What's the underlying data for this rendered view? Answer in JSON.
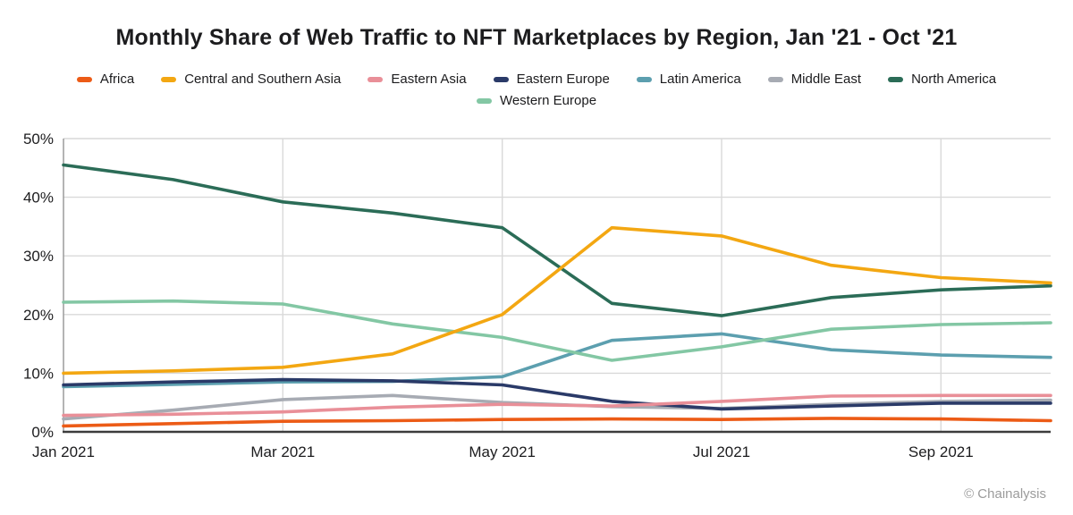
{
  "title": "Monthly Share of Web Traffic to NFT Marketplaces by Region, Jan '21 - Oct '21",
  "footer": {
    "credit": "© Chainalysis"
  },
  "chart_data": {
    "type": "line",
    "x": [
      "Jan 2021",
      "Feb 2021",
      "Mar 2021",
      "Apr 2021",
      "May 2021",
      "Jun 2021",
      "Jul 2021",
      "Aug 2021",
      "Sep 2021",
      "Oct 2021"
    ],
    "xticks": [
      {
        "label": "Jan 2021",
        "index": 0
      },
      {
        "label": "Mar 2021",
        "index": 2
      },
      {
        "label": "May 2021",
        "index": 4
      },
      {
        "label": "Jul 2021",
        "index": 6
      },
      {
        "label": "Sep 2021",
        "index": 8
      }
    ],
    "ylim": [
      0,
      50
    ],
    "yticks": [
      0,
      10,
      20,
      30,
      40,
      50
    ],
    "ytick_suffix": "%",
    "grid": {
      "horizontal": true,
      "vertical": true,
      "color": "#d9d9d9"
    },
    "axis_colors": {
      "x_axis": "#3c3c3c",
      "y_axis": "#9b9b9b"
    },
    "legend_position": "top",
    "series": [
      {
        "name": "Africa",
        "color": "#ec5b16",
        "values": [
          1.0,
          1.4,
          1.8,
          1.9,
          2.1,
          2.2,
          2.1,
          2.3,
          2.2,
          1.9
        ]
      },
      {
        "name": "Central and Southern Asia",
        "color": "#f3a712",
        "values": [
          10.0,
          10.4,
          11.0,
          13.3,
          20.0,
          34.8,
          33.4,
          28.4,
          26.3,
          25.4
        ]
      },
      {
        "name": "Eastern Asia",
        "color": "#e98f98",
        "values": [
          2.8,
          3.0,
          3.4,
          4.2,
          4.7,
          4.4,
          5.2,
          6.1,
          6.2,
          6.2
        ]
      },
      {
        "name": "Eastern Europe",
        "color": "#2a3a68",
        "values": [
          8.0,
          8.5,
          8.9,
          8.7,
          8.0,
          5.2,
          3.9,
          4.4,
          4.9,
          4.9
        ]
      },
      {
        "name": "Latin America",
        "color": "#5c9faf",
        "values": [
          7.7,
          8.1,
          8.5,
          8.6,
          9.4,
          15.6,
          16.7,
          14.0,
          13.1,
          12.7
        ]
      },
      {
        "name": "Middle East",
        "color": "#a7abb3",
        "values": [
          2.2,
          3.7,
          5.5,
          6.2,
          5.0,
          4.3,
          4.0,
          4.7,
          5.2,
          5.4
        ]
      },
      {
        "name": "North America",
        "color": "#2b6c57",
        "values": [
          45.5,
          43.0,
          39.2,
          37.3,
          34.8,
          21.9,
          19.8,
          22.9,
          24.2,
          24.9
        ]
      },
      {
        "name": "Western Europe",
        "color": "#83c7a4",
        "values": [
          22.1,
          22.3,
          21.8,
          18.4,
          16.1,
          12.2,
          14.5,
          17.5,
          18.3,
          18.6
        ]
      }
    ]
  }
}
